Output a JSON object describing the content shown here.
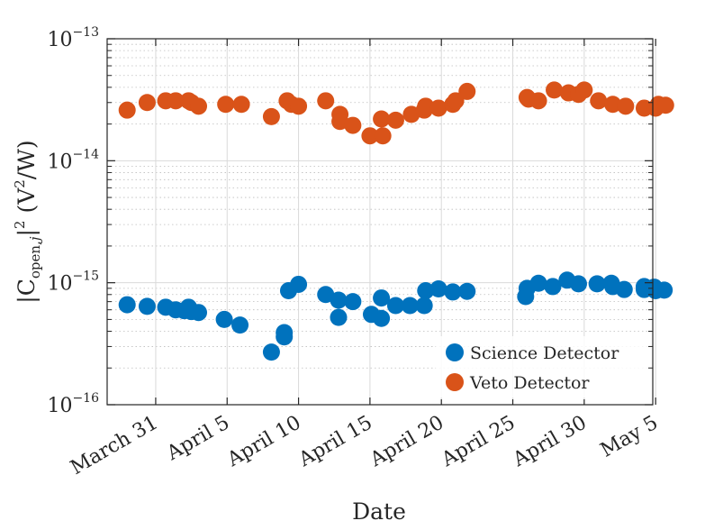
{
  "chart_data": {
    "type": "scatter",
    "title": "",
    "xlabel": "Date",
    "ylabel_parts": {
      "open": "|C",
      "sub": "open,",
      "sub_j": "j",
      "close": "|",
      "sup": "2",
      "units": "(V",
      "units_sup": "2",
      "units_end": "/W)"
    },
    "yscale": "log",
    "ylim": [
      1e-16,
      1e-13
    ],
    "xlim": [
      -3.4,
      34.8
    ],
    "grid": true,
    "legend_position": "bottom-right",
    "x_ticks": [
      {
        "label": "March 31",
        "value": 0
      },
      {
        "label": "April 5",
        "value": 5
      },
      {
        "label": "April 10",
        "value": 10
      },
      {
        "label": "April 15",
        "value": 15
      },
      {
        "label": "April 20",
        "value": 20
      },
      {
        "label": "April 25",
        "value": 25
      },
      {
        "label": "April 30",
        "value": 30
      },
      {
        "label": "May 5",
        "value": 35
      }
    ],
    "y_ticks": [
      {
        "base": "10",
        "exp": "−13",
        "value": 1e-13
      },
      {
        "base": "10",
        "exp": "−14",
        "value": 1e-14
      },
      {
        "base": "10",
        "exp": "−15",
        "value": 1e-15
      },
      {
        "base": "10",
        "exp": "−16",
        "value": 1e-16
      }
    ],
    "series": [
      {
        "name": "Science Detector",
        "color": "#0072BD",
        "points": [
          [
            -2,
            6.6e-16
          ],
          [
            -0.6,
            6.4e-16
          ],
          [
            0.7,
            6.3e-16
          ],
          [
            1.4,
            6e-16
          ],
          [
            2.0,
            5.9e-16
          ],
          [
            2.3,
            6.3e-16
          ],
          [
            2.5,
            5.8e-16
          ],
          [
            3.0,
            5.7e-16
          ],
          [
            4.8,
            5e-16
          ],
          [
            5.9,
            4.5e-16
          ],
          [
            8.1,
            2.7e-16
          ],
          [
            9.0,
            3.9e-16
          ],
          [
            9.0,
            3.6e-16
          ],
          [
            9.3,
            8.6e-16
          ],
          [
            10.0,
            9.7e-16
          ],
          [
            11.9,
            8e-16
          ],
          [
            12.8,
            5.2e-16
          ],
          [
            12.8,
            7.2e-16
          ],
          [
            13.8,
            7e-16
          ],
          [
            15.1,
            5.5e-16
          ],
          [
            15.8,
            5.1e-16
          ],
          [
            15.8,
            7.5e-16
          ],
          [
            16.8,
            6.5e-16
          ],
          [
            17.8,
            6.5e-16
          ],
          [
            18.8,
            6.5e-16
          ],
          [
            18.9,
            8.6e-16
          ],
          [
            19.8,
            8.9e-16
          ],
          [
            20.8,
            8.4e-16
          ],
          [
            21.8,
            8.5e-16
          ],
          [
            25.9,
            7.7e-16
          ],
          [
            26.0,
            9e-16
          ],
          [
            26.8,
            9.9e-16
          ],
          [
            27.8,
            9.3e-16
          ],
          [
            28.8,
            1.05e-15
          ],
          [
            29.6,
            9.8e-16
          ],
          [
            30.9,
            9.8e-16
          ],
          [
            31.9,
            9.9e-16
          ],
          [
            32.0,
            9.3e-16
          ],
          [
            32.8,
            8.8e-16
          ],
          [
            34.2,
            8.8e-16
          ],
          [
            34.2,
            9.3e-16
          ],
          [
            34.9,
            9.2e-16
          ],
          [
            35.0,
            8.6e-16
          ],
          [
            35.6,
            8.7e-16
          ]
        ]
      },
      {
        "name": "Veto Detector",
        "color": "#D95319",
        "points": [
          [
            -2,
            2.6e-14
          ],
          [
            -0.6,
            3e-14
          ],
          [
            0.7,
            3.1e-14
          ],
          [
            1.4,
            3.1e-14
          ],
          [
            2.3,
            3.1e-14
          ],
          [
            2.5,
            3e-14
          ],
          [
            3.0,
            2.8e-14
          ],
          [
            4.9,
            2.9e-14
          ],
          [
            6.0,
            2.9e-14
          ],
          [
            8.1,
            2.3e-14
          ],
          [
            9.2,
            3.1e-14
          ],
          [
            9.5,
            2.9e-14
          ],
          [
            10.0,
            2.8e-14
          ],
          [
            11.9,
            3.1e-14
          ],
          [
            12.9,
            2.4e-14
          ],
          [
            12.9,
            2.1e-14
          ],
          [
            13.8,
            1.95e-14
          ],
          [
            15.0,
            1.6e-14
          ],
          [
            15.8,
            2.2e-14
          ],
          [
            15.9,
            1.6e-14
          ],
          [
            16.8,
            2.15e-14
          ],
          [
            17.9,
            2.4e-14
          ],
          [
            18.8,
            2.6e-14
          ],
          [
            18.9,
            2.8e-14
          ],
          [
            19.8,
            2.7e-14
          ],
          [
            20.8,
            2.9e-14
          ],
          [
            21.0,
            3.1e-14
          ],
          [
            21.8,
            3.7e-14
          ],
          [
            26.0,
            3.3e-14
          ],
          [
            26.1,
            3.2e-14
          ],
          [
            26.8,
            3.1e-14
          ],
          [
            27.9,
            3.8e-14
          ],
          [
            28.9,
            3.6e-14
          ],
          [
            29.6,
            3.5e-14
          ],
          [
            30.0,
            3.8e-14
          ],
          [
            31.0,
            3.1e-14
          ],
          [
            32.0,
            2.9e-14
          ],
          [
            32.9,
            2.8e-14
          ],
          [
            34.2,
            2.7e-14
          ],
          [
            35.0,
            2.7e-14
          ],
          [
            35.2,
            2.9e-14
          ],
          [
            35.7,
            2.85e-14
          ]
        ]
      }
    ]
  }
}
